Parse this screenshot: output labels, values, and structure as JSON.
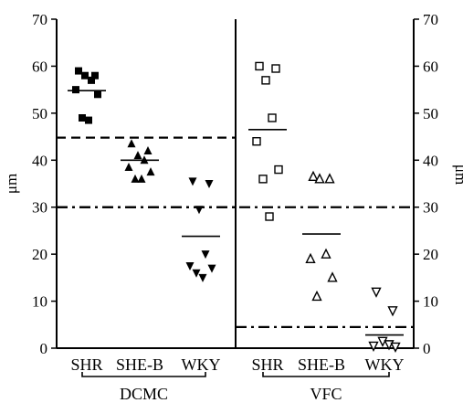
{
  "chart_data": {
    "type": "scatter",
    "ylabel": "μm",
    "ylim": [
      0,
      70
    ],
    "y_ticks": [
      "0",
      "10",
      "20",
      "30",
      "40",
      "50",
      "60",
      "70"
    ],
    "panels": [
      {
        "label": "DCMC",
        "categories": [
          "SHR",
          "SHE-B",
          "WKY"
        ],
        "groups": [
          {
            "category": "SHR",
            "marker": "filled-square",
            "values": [
              59,
              58,
              58,
              57,
              55,
              54,
              49,
              48.5
            ],
            "mean": 54.8
          },
          {
            "category": "SHE-B",
            "marker": "filled-triangle-up",
            "values": [
              43.5,
              42,
              41,
              40,
              38.5,
              37.5,
              36,
              36
            ],
            "mean": 40
          },
          {
            "category": "WKY",
            "marker": "filled-triangle-down",
            "values": [
              35.5,
              35,
              29.5,
              20,
              17.5,
              17,
              16,
              15
            ],
            "mean": 23.8
          }
        ],
        "reference_lines": [
          {
            "style": "dashed",
            "y": 44.8
          },
          {
            "style": "dash-dot",
            "y": 30
          }
        ]
      },
      {
        "label": "VFC",
        "categories": [
          "SHR",
          "SHE-B",
          "WKY"
        ],
        "groups": [
          {
            "category": "SHR",
            "marker": "open-square",
            "values": [
              60,
              59.5,
              57,
              49,
              44,
              38,
              36,
              28
            ],
            "mean": 46.5
          },
          {
            "category": "SHE-B",
            "marker": "open-triangle-up",
            "values": [
              36.5,
              36,
              36,
              20,
              19,
              15,
              11
            ],
            "mean": 24.3
          },
          {
            "category": "WKY",
            "marker": "open-triangle-down",
            "values": [
              12,
              8,
              1.5,
              0.8,
              0.5,
              0.3
            ],
            "mean": 2.8
          }
        ],
        "reference_lines": [
          {
            "style": "dash-dot",
            "y": 4.5
          }
        ]
      }
    ],
    "shared_reference_lines": [
      {
        "style": "dash-dot",
        "y": 30,
        "spans": "both"
      }
    ]
  }
}
